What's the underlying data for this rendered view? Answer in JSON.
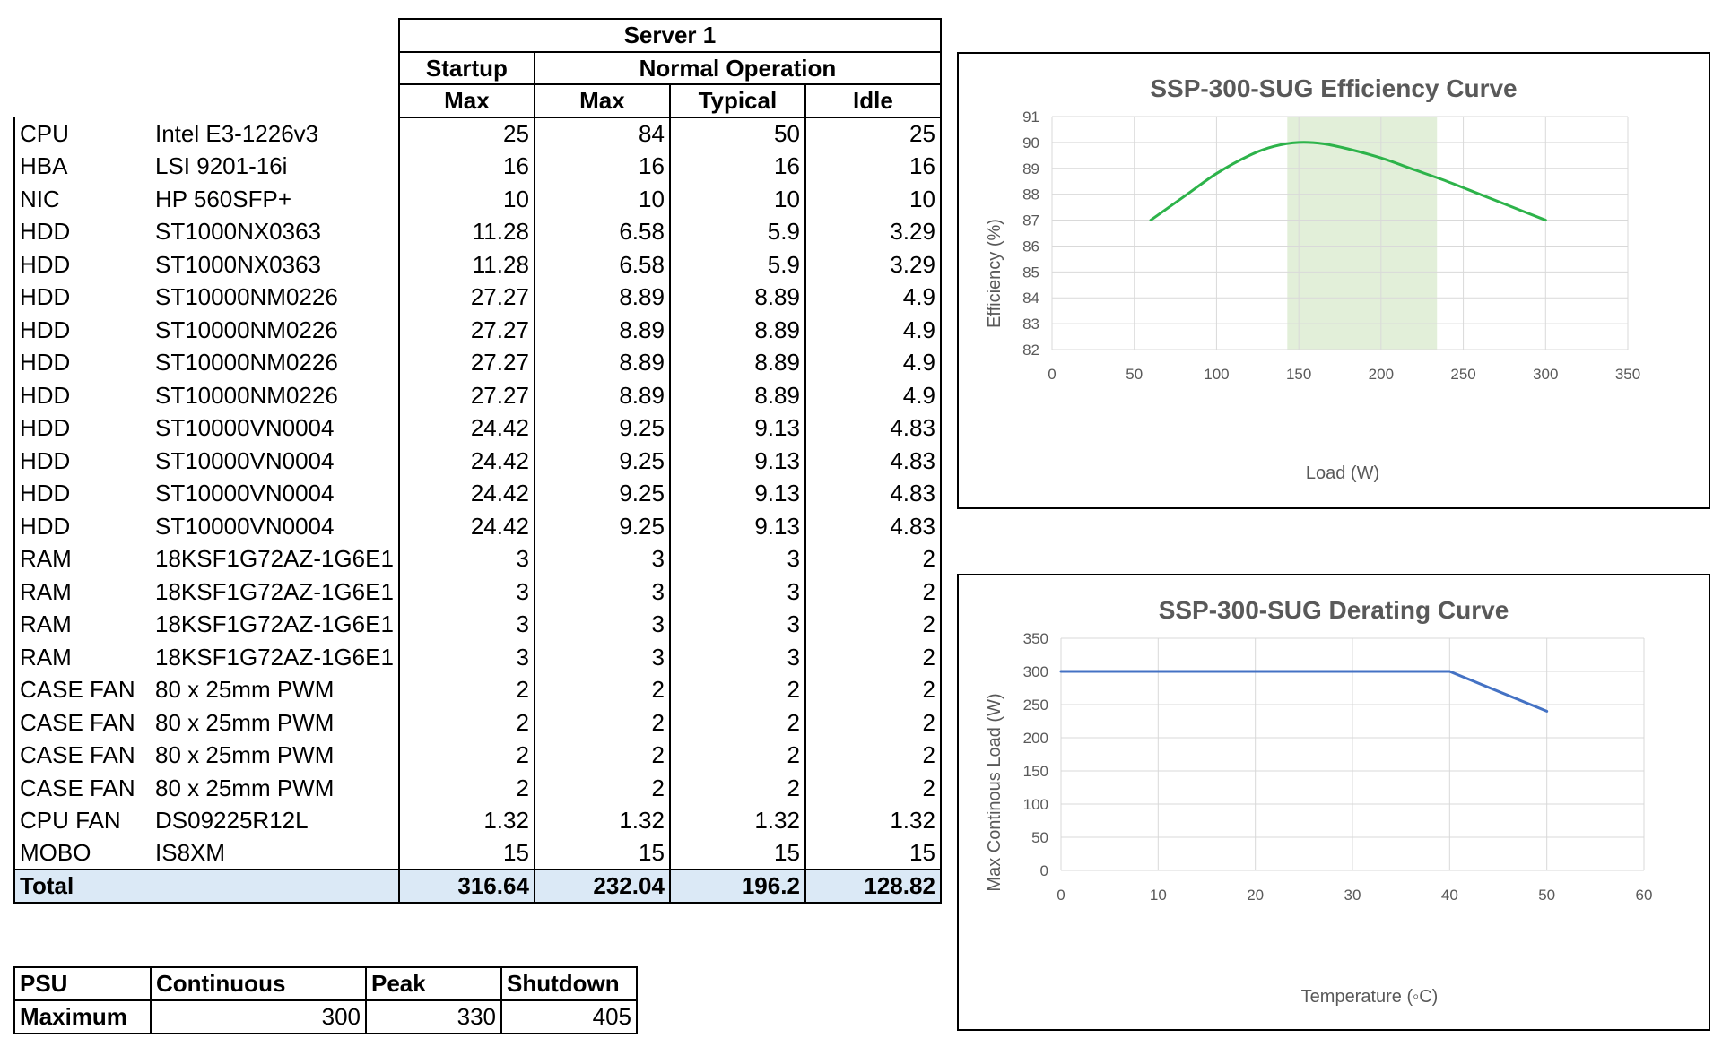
{
  "table": {
    "server_header": "Server 1",
    "startup_header": "Startup",
    "normal_header": "Normal Operation",
    "col_headers": [
      "Max",
      "Max",
      "Typical",
      "Idle"
    ],
    "rows": [
      {
        "type": "CPU",
        "model": "Intel E3-1226v3",
        "startup_max": "25",
        "max": "84",
        "typical": "50",
        "idle": "25"
      },
      {
        "type": "HBA",
        "model": "LSI 9201-16i",
        "startup_max": "16",
        "max": "16",
        "typical": "16",
        "idle": "16"
      },
      {
        "type": "NIC",
        "model": "HP 560SFP+",
        "startup_max": "10",
        "max": "10",
        "typical": "10",
        "idle": "10"
      },
      {
        "type": "HDD",
        "model": "ST1000NX0363",
        "startup_max": "11.28",
        "max": "6.58",
        "typical": "5.9",
        "idle": "3.29"
      },
      {
        "type": "HDD",
        "model": "ST1000NX0363",
        "startup_max": "11.28",
        "max": "6.58",
        "typical": "5.9",
        "idle": "3.29"
      },
      {
        "type": "HDD",
        "model": "ST10000NM0226",
        "startup_max": "27.27",
        "max": "8.89",
        "typical": "8.89",
        "idle": "4.9"
      },
      {
        "type": "HDD",
        "model": "ST10000NM0226",
        "startup_max": "27.27",
        "max": "8.89",
        "typical": "8.89",
        "idle": "4.9"
      },
      {
        "type": "HDD",
        "model": "ST10000NM0226",
        "startup_max": "27.27",
        "max": "8.89",
        "typical": "8.89",
        "idle": "4.9"
      },
      {
        "type": "HDD",
        "model": "ST10000NM0226",
        "startup_max": "27.27",
        "max": "8.89",
        "typical": "8.89",
        "idle": "4.9"
      },
      {
        "type": "HDD",
        "model": "ST10000VN0004",
        "startup_max": "24.42",
        "max": "9.25",
        "typical": "9.13",
        "idle": "4.83"
      },
      {
        "type": "HDD",
        "model": "ST10000VN0004",
        "startup_max": "24.42",
        "max": "9.25",
        "typical": "9.13",
        "idle": "4.83"
      },
      {
        "type": "HDD",
        "model": "ST10000VN0004",
        "startup_max": "24.42",
        "max": "9.25",
        "typical": "9.13",
        "idle": "4.83"
      },
      {
        "type": "HDD",
        "model": "ST10000VN0004",
        "startup_max": "24.42",
        "max": "9.25",
        "typical": "9.13",
        "idle": "4.83"
      },
      {
        "type": "RAM",
        "model": "18KSF1G72AZ-1G6E1",
        "startup_max": "3",
        "max": "3",
        "typical": "3",
        "idle": "2"
      },
      {
        "type": "RAM",
        "model": "18KSF1G72AZ-1G6E1",
        "startup_max": "3",
        "max": "3",
        "typical": "3",
        "idle": "2"
      },
      {
        "type": "RAM",
        "model": "18KSF1G72AZ-1G6E1",
        "startup_max": "3",
        "max": "3",
        "typical": "3",
        "idle": "2"
      },
      {
        "type": "RAM",
        "model": "18KSF1G72AZ-1G6E1",
        "startup_max": "3",
        "max": "3",
        "typical": "3",
        "idle": "2"
      },
      {
        "type": "CASE FAN",
        "model": "80 x 25mm PWM",
        "startup_max": "2",
        "max": "2",
        "typical": "2",
        "idle": "2"
      },
      {
        "type": "CASE FAN",
        "model": "80 x 25mm PWM",
        "startup_max": "2",
        "max": "2",
        "typical": "2",
        "idle": "2"
      },
      {
        "type": "CASE FAN",
        "model": "80 x 25mm PWM",
        "startup_max": "2",
        "max": "2",
        "typical": "2",
        "idle": "2"
      },
      {
        "type": "CASE FAN",
        "model": "80 x 25mm PWM",
        "startup_max": "2",
        "max": "2",
        "typical": "2",
        "idle": "2"
      },
      {
        "type": "CPU FAN",
        "model": "DS09225R12L",
        "startup_max": "1.32",
        "max": "1.32",
        "typical": "1.32",
        "idle": "1.32"
      },
      {
        "type": "MOBO",
        "model": "IS8XM",
        "startup_max": "15",
        "max": "15",
        "typical": "15",
        "idle": "15"
      }
    ],
    "total": {
      "label": "Total",
      "startup_max": "316.64",
      "max": "232.04",
      "typical": "196.2",
      "idle": "128.82"
    }
  },
  "psu": {
    "headers": [
      "PSU",
      "Continuous",
      "Peak",
      "Shutdown"
    ],
    "row": {
      "label": "Maximum",
      "continuous": "300",
      "peak": "330",
      "shutdown": "405"
    }
  },
  "colors": {
    "total_fill": "#dbe9f6",
    "efficiency_line": "#2db34a",
    "efficiency_band": "#e2efd9",
    "derating_line": "#4472c4",
    "grid": "#d9d9d9",
    "text_gray": "#595959"
  },
  "chart_data": [
    {
      "type": "line",
      "title": "SSP-300-SUG Efficiency Curve",
      "xlabel": "Load (W)",
      "ylabel": "Efficiency (%)",
      "xlim": [
        0,
        350
      ],
      "ylim": [
        82,
        91
      ],
      "xticks": [
        0,
        50,
        100,
        150,
        200,
        250,
        300,
        350
      ],
      "yticks": [
        82,
        83,
        84,
        85,
        86,
        87,
        88,
        89,
        90,
        91
      ],
      "shaded_range": [
        143,
        234
      ],
      "grid": true,
      "series": [
        {
          "x": [
            60,
            80,
            100,
            120,
            135,
            150,
            165,
            180,
            200,
            220,
            240,
            260,
            280,
            300
          ],
          "y": [
            87.0,
            87.9,
            88.8,
            89.5,
            89.85,
            90.0,
            89.95,
            89.75,
            89.4,
            88.95,
            88.5,
            88.0,
            87.5,
            87.0
          ]
        }
      ]
    },
    {
      "type": "line",
      "title": "SSP-300-SUG Derating Curve",
      "xlabel": "Temperature (◦C)",
      "ylabel": "Max Continous Load (W)",
      "xlim": [
        0,
        60
      ],
      "ylim": [
        0,
        350
      ],
      "xticks": [
        0,
        10,
        20,
        30,
        40,
        50,
        60
      ],
      "yticks": [
        0,
        50,
        100,
        150,
        200,
        250,
        300,
        350
      ],
      "grid": true,
      "series": [
        {
          "x": [
            0,
            40,
            50
          ],
          "y": [
            300,
            300,
            240
          ]
        }
      ]
    }
  ]
}
